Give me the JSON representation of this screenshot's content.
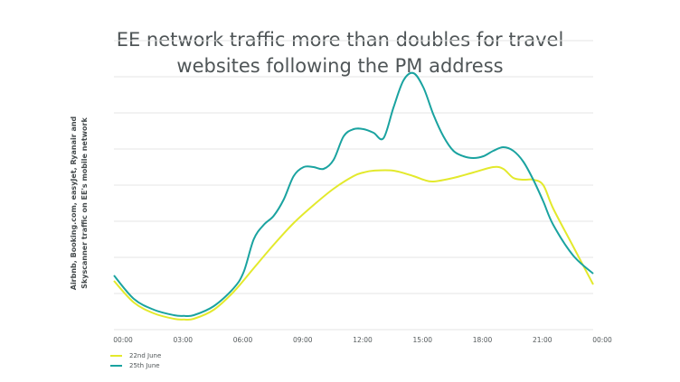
{
  "chart_data": {
    "type": "line",
    "title_lines": [
      "EE network traffic more than doubles for travel",
      "websites following the PM address"
    ],
    "ylabel_lines": [
      "Airbnb, Booking.com, easyJet, Ryanair and",
      "Skyscanner traffic on EE's mobile network"
    ],
    "xlabel": "",
    "x_ticks": [
      "00:00",
      "03:00",
      "06:00",
      "09:00",
      "12:00",
      "15:00",
      "18:00",
      "21:00",
      "00:00"
    ],
    "xlim": [
      0,
      24
    ],
    "ylim": [
      0,
      8
    ],
    "grid": true,
    "legend_position": "bottom-left",
    "series": [
      {
        "name": "22nd June",
        "color": "#e3e92c",
        "x": [
          0,
          1,
          2,
          3,
          3.5,
          4,
          5,
          6,
          7,
          8,
          9,
          10,
          11,
          12,
          12.5,
          13,
          14,
          15,
          15.5,
          16,
          17,
          18,
          19,
          19.5,
          20,
          20.5,
          21,
          21.5,
          22,
          23,
          24
        ],
        "y": [
          1.35,
          0.75,
          0.45,
          0.3,
          0.28,
          0.3,
          0.55,
          1.05,
          1.7,
          2.35,
          2.95,
          3.45,
          3.9,
          4.25,
          4.35,
          4.4,
          4.4,
          4.25,
          4.15,
          4.1,
          4.2,
          4.35,
          4.5,
          4.45,
          4.2,
          4.15,
          4.15,
          4.0,
          3.35,
          2.3,
          1.25
        ]
      },
      {
        "name": "25th June",
        "color": "#1aa3a0",
        "x": [
          0,
          1,
          2,
          3,
          3.5,
          4,
          5,
          6,
          6.5,
          7,
          7.5,
          8,
          8.5,
          9,
          9.5,
          10,
          10.5,
          11,
          11.5,
          12,
          12.5,
          13,
          13.5,
          14,
          14.5,
          15,
          15.5,
          16,
          16.5,
          17,
          17.5,
          18,
          18.5,
          19,
          19.5,
          20,
          20.5,
          21,
          21.5,
          22,
          23,
          24
        ],
        "y": [
          1.5,
          0.85,
          0.55,
          0.4,
          0.38,
          0.4,
          0.65,
          1.15,
          1.6,
          2.5,
          2.9,
          3.15,
          3.6,
          4.25,
          4.5,
          4.5,
          4.45,
          4.7,
          5.35,
          5.55,
          5.55,
          5.45,
          5.3,
          6.15,
          6.9,
          7.1,
          6.7,
          5.95,
          5.35,
          4.95,
          4.8,
          4.75,
          4.8,
          4.95,
          5.05,
          4.95,
          4.65,
          4.15,
          3.55,
          2.9,
          2.05,
          1.55
        ]
      }
    ]
  }
}
